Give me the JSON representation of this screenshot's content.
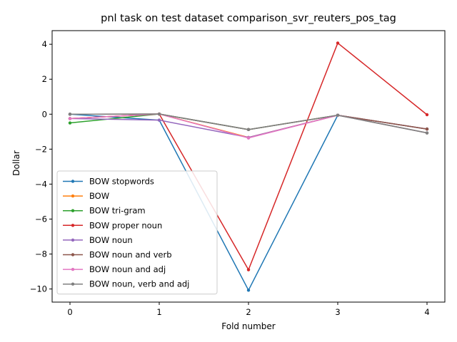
{
  "chart_data": {
    "type": "line",
    "title": "pnl task on test dataset comparison_svr_reuters_pos_tag",
    "xlabel": "Fold number",
    "ylabel": "Dollar",
    "x": [
      0,
      1,
      2,
      3,
      4
    ],
    "xlim": [
      -0.2,
      4.2
    ],
    "ylim": [
      -10.75,
      4.78
    ],
    "xticks": [
      0,
      1,
      2,
      3,
      4
    ],
    "yticks": [
      4,
      2,
      0,
      -2,
      -4,
      -6,
      -8,
      -10
    ],
    "ytick_labels": [
      "4",
      "2",
      "0",
      "−2",
      "−4",
      "−6",
      "−8",
      "−10"
    ],
    "grid": false,
    "legend_position": "lower-left",
    "series": [
      {
        "name": "BOW stopwords",
        "color": "#1f77b4",
        "values": [
          0.0,
          -0.34,
          -10.07,
          -0.06,
          -0.85
        ]
      },
      {
        "name": "BOW",
        "color": "#ff7f0e",
        "values": [
          -0.25,
          0.01,
          -1.33,
          -0.06,
          -0.85
        ]
      },
      {
        "name": "BOW tri-gram",
        "color": "#2ca02c",
        "values": [
          -0.5,
          0.01,
          -0.88,
          -0.06,
          -1.07
        ]
      },
      {
        "name": "BOW proper noun",
        "color": "#d62728",
        "values": [
          -0.25,
          0.01,
          -8.9,
          4.07,
          -0.03
        ]
      },
      {
        "name": "BOW noun",
        "color": "#9467bd",
        "values": [
          -0.25,
          -0.34,
          -1.33,
          -0.06,
          -0.85
        ]
      },
      {
        "name": "BOW noun and verb",
        "color": "#8c564b",
        "values": [
          0.0,
          0.01,
          -0.88,
          -0.06,
          -0.85
        ]
      },
      {
        "name": "BOW noun and adj",
        "color": "#e377c2",
        "values": [
          -0.25,
          0.01,
          -1.36,
          -0.06,
          -1.07
        ]
      },
      {
        "name": "BOW noun, verb and adj",
        "color": "#7f7f7f",
        "values": [
          0.0,
          0.01,
          -0.88,
          -0.06,
          -1.07
        ]
      }
    ]
  }
}
